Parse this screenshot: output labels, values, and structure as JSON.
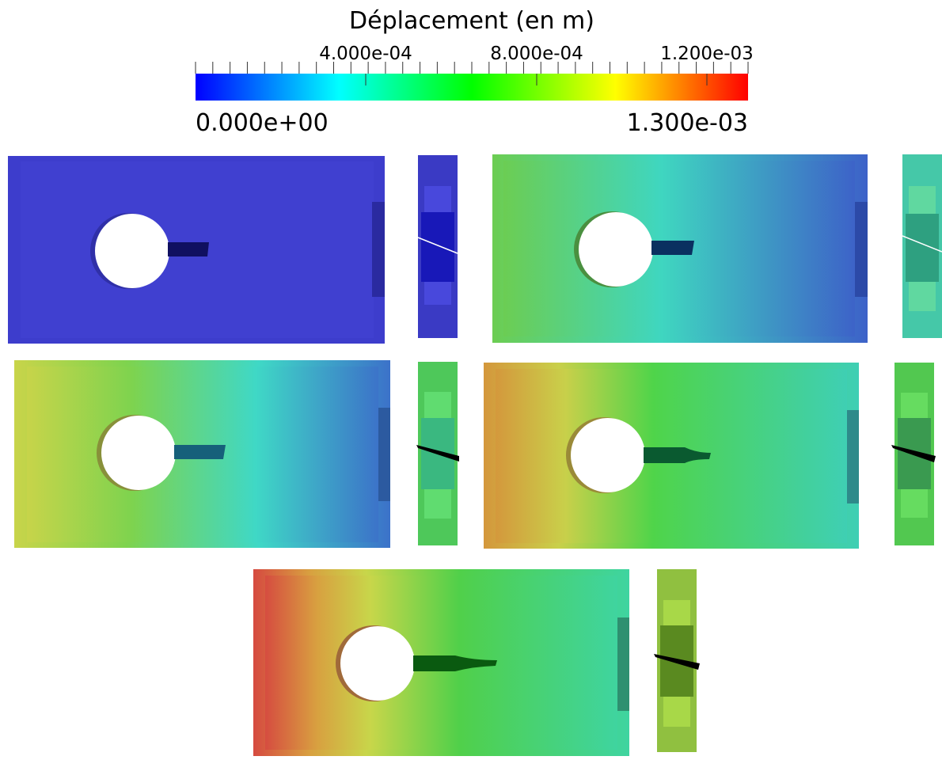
{
  "colorbar": {
    "title": "Déplacement (en m)",
    "tick_labels": [
      "4.000e-04",
      "8.000e-04",
      "1.200e-03"
    ],
    "min_label": "0.000e+00",
    "max_label": "1.300e-03"
  }
}
